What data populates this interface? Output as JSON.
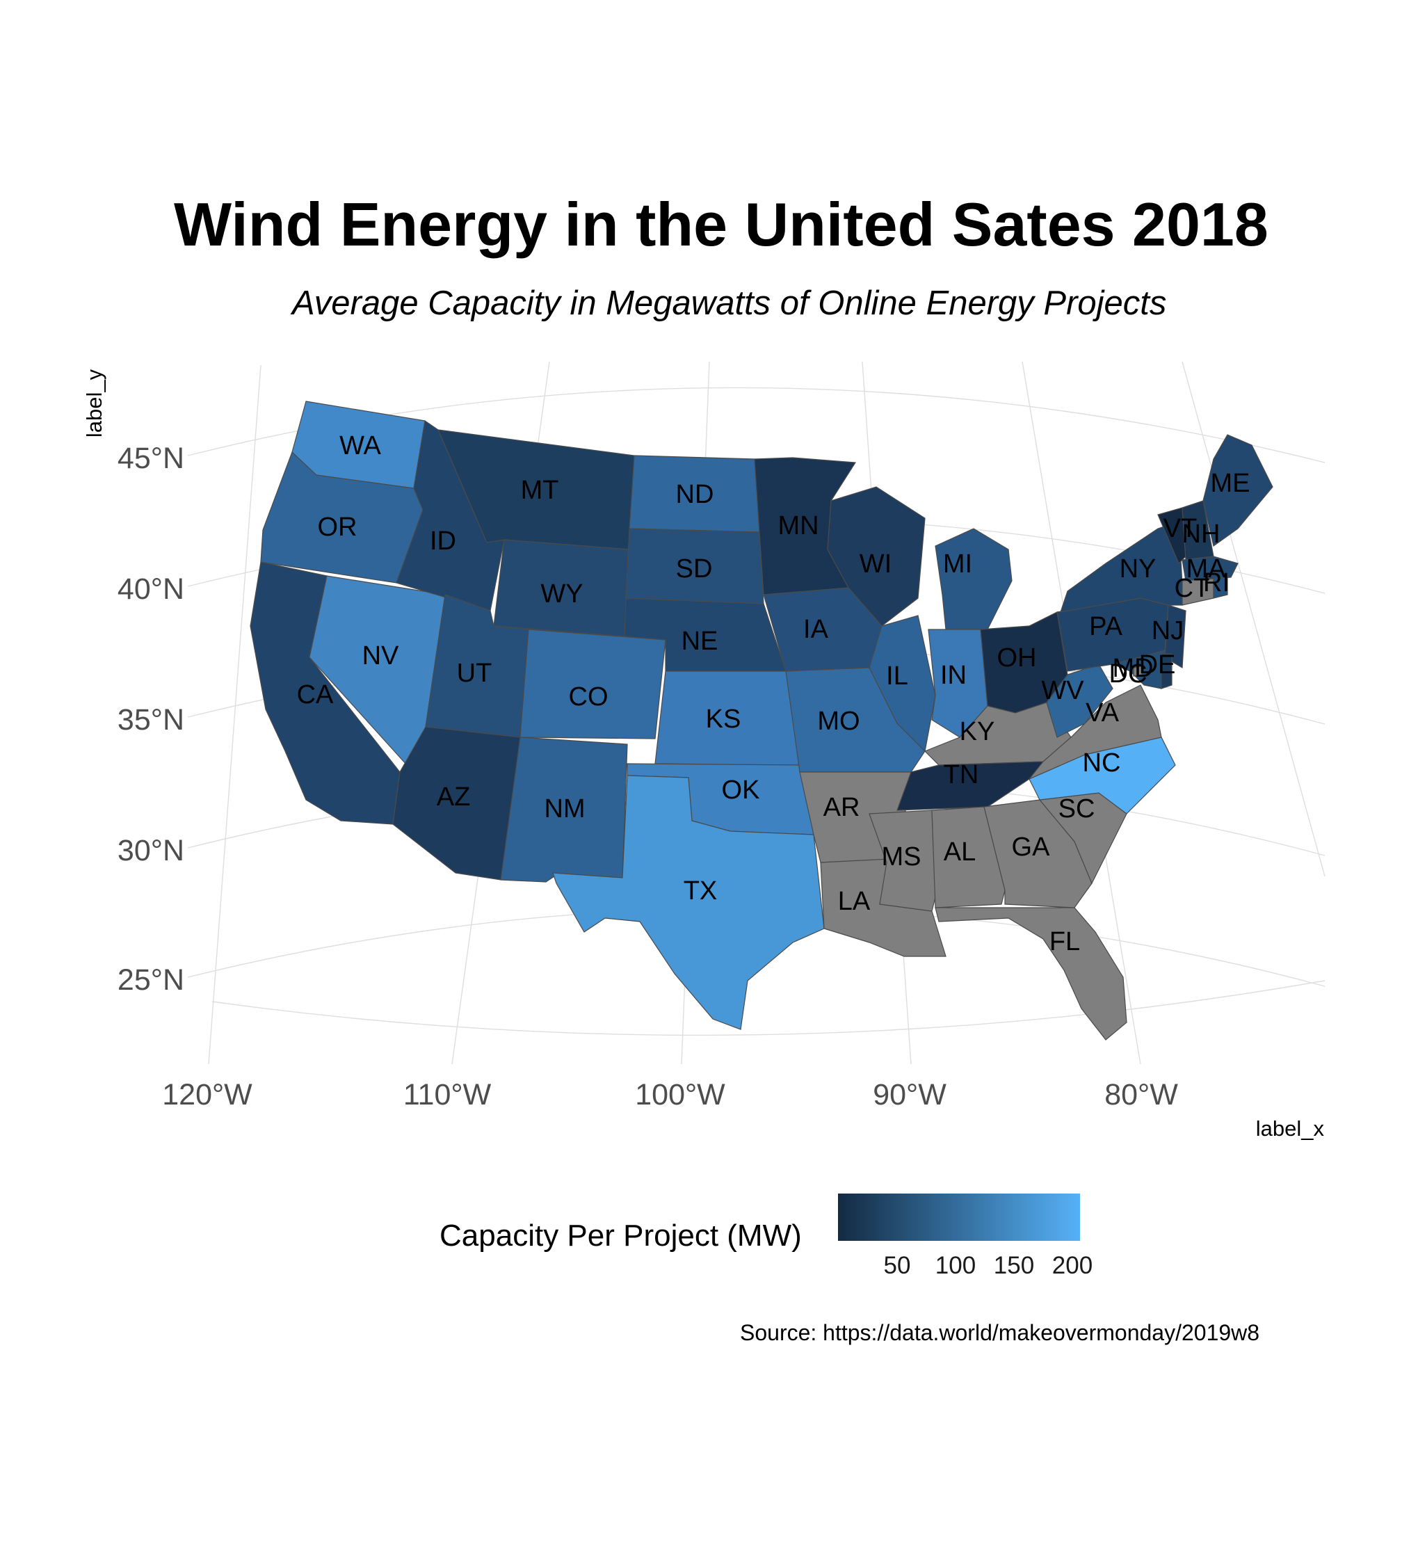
{
  "title": "Wind Energy in the United Sates 2018",
  "subtitle": "Average Capacity in Megawatts of Online Energy Projects",
  "axes": {
    "xlabel": "label_x",
    "ylabel": "label_y",
    "lat_ticks": [
      "45°N",
      "40°N",
      "35°N",
      "30°N",
      "25°N"
    ],
    "lon_ticks": [
      "120°W",
      "110°W",
      "100°W",
      "90°W",
      "80°W"
    ]
  },
  "legend": {
    "title": "Capacity Per Project (MW)",
    "ticks": [
      "50",
      "100",
      "150",
      "200"
    ],
    "color_low": "#132b43",
    "color_high": "#56b1f7",
    "no_data_color": "#7f7f7f",
    "range": [
      10,
      215
    ]
  },
  "source": "Source: https://data.world/makeovermonday/2019w8",
  "states": [
    {
      "abbr": "WA",
      "fill": "#4289c9"
    },
    {
      "abbr": "OR",
      "fill": "#2f6599"
    },
    {
      "abbr": "CA",
      "fill": "#21456a"
    },
    {
      "abbr": "NV",
      "fill": "#4285c3"
    },
    {
      "abbr": "ID",
      "fill": "#21446a"
    },
    {
      "abbr": "MT",
      "fill": "#1e3e60"
    },
    {
      "abbr": "WY",
      "fill": "#244a72"
    },
    {
      "abbr": "UT",
      "fill": "#265079"
    },
    {
      "abbr": "AZ",
      "fill": "#1d3b5c"
    },
    {
      "abbr": "CO",
      "fill": "#336ca2"
    },
    {
      "abbr": "NM",
      "fill": "#2e6295"
    },
    {
      "abbr": "ND",
      "fill": "#30679c"
    },
    {
      "abbr": "SD",
      "fill": "#26507a"
    },
    {
      "abbr": "NE",
      "fill": "#23486f"
    },
    {
      "abbr": "KS",
      "fill": "#3b7ab8"
    },
    {
      "abbr": "OK",
      "fill": "#3f82c2"
    },
    {
      "abbr": "TX",
      "fill": "#4897d6"
    },
    {
      "abbr": "MN",
      "fill": "#1a3453"
    },
    {
      "abbr": "IA",
      "fill": "#26507b"
    },
    {
      "abbr": "MO",
      "fill": "#336ca3"
    },
    {
      "abbr": "AR",
      "fill": "#7f7f7f"
    },
    {
      "abbr": "LA",
      "fill": "#7f7f7f"
    },
    {
      "abbr": "WI",
      "fill": "#1e3c5e"
    },
    {
      "abbr": "IL",
      "fill": "#2e6397"
    },
    {
      "abbr": "MI",
      "fill": "#2a5886"
    },
    {
      "abbr": "IN",
      "fill": "#3a79b6"
    },
    {
      "abbr": "OH",
      "fill": "#182f4c"
    },
    {
      "abbr": "KY",
      "fill": "#7f7f7f"
    },
    {
      "abbr": "TN",
      "fill": "#172d49"
    },
    {
      "abbr": "MS",
      "fill": "#7f7f7f"
    },
    {
      "abbr": "AL",
      "fill": "#7f7f7f"
    },
    {
      "abbr": "GA",
      "fill": "#7f7f7f"
    },
    {
      "abbr": "FL",
      "fill": "#7f7f7f"
    },
    {
      "abbr": "SC",
      "fill": "#7f7f7f"
    },
    {
      "abbr": "NC",
      "fill": "#56b0f5"
    },
    {
      "abbr": "VA",
      "fill": "#7f7f7f"
    },
    {
      "abbr": "WV",
      "fill": "#2f6699"
    },
    {
      "abbr": "PA",
      "fill": "#21446a"
    },
    {
      "abbr": "NY",
      "fill": "#22476e"
    },
    {
      "abbr": "VT",
      "fill": "#152a45"
    },
    {
      "abbr": "NH",
      "fill": "#1c3857"
    },
    {
      "abbr": "ME",
      "fill": "#23486f"
    },
    {
      "abbr": "MA",
      "fill": "#244a72"
    },
    {
      "abbr": "CT",
      "fill": "#7f7f7f"
    },
    {
      "abbr": "RI",
      "fill": "#27527d"
    },
    {
      "abbr": "NJ",
      "fill": "#1f4064"
    },
    {
      "abbr": "MD",
      "fill": "#25507a"
    },
    {
      "abbr": "DE",
      "fill": "#1d3a5b"
    },
    {
      "abbr": "DC",
      "fill": "#7f7f7f"
    }
  ]
}
